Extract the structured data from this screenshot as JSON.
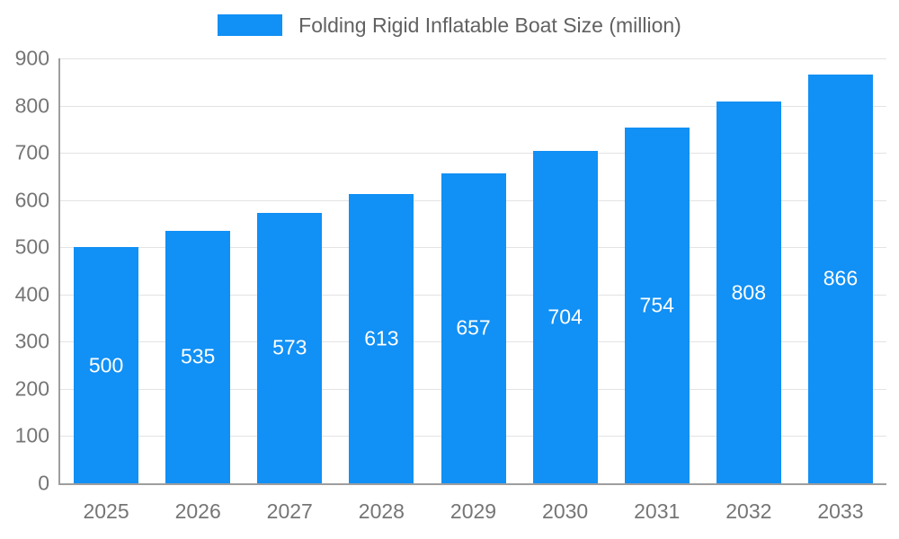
{
  "chart_data": {
    "type": "bar",
    "title": "Folding Rigid Inflatable Boat Size (million)",
    "legend_entries": [
      "Folding Rigid Inflatable Boat Size (million)"
    ],
    "categories": [
      "2025",
      "2026",
      "2027",
      "2028",
      "2029",
      "2030",
      "2031",
      "2032",
      "2033"
    ],
    "values": [
      500,
      535,
      573,
      613,
      657,
      704,
      754,
      808,
      866
    ],
    "xlabel": "",
    "ylabel": "",
    "ylim": [
      0,
      900
    ],
    "ytick_step": 100,
    "grid": true,
    "legend_position": "top",
    "colors": {
      "bar": "#1190F5",
      "value_label": "#ffffff",
      "tick_label": "#757575",
      "axis_line": "#9e9e9e",
      "gridline": "#e3e3e3"
    }
  }
}
